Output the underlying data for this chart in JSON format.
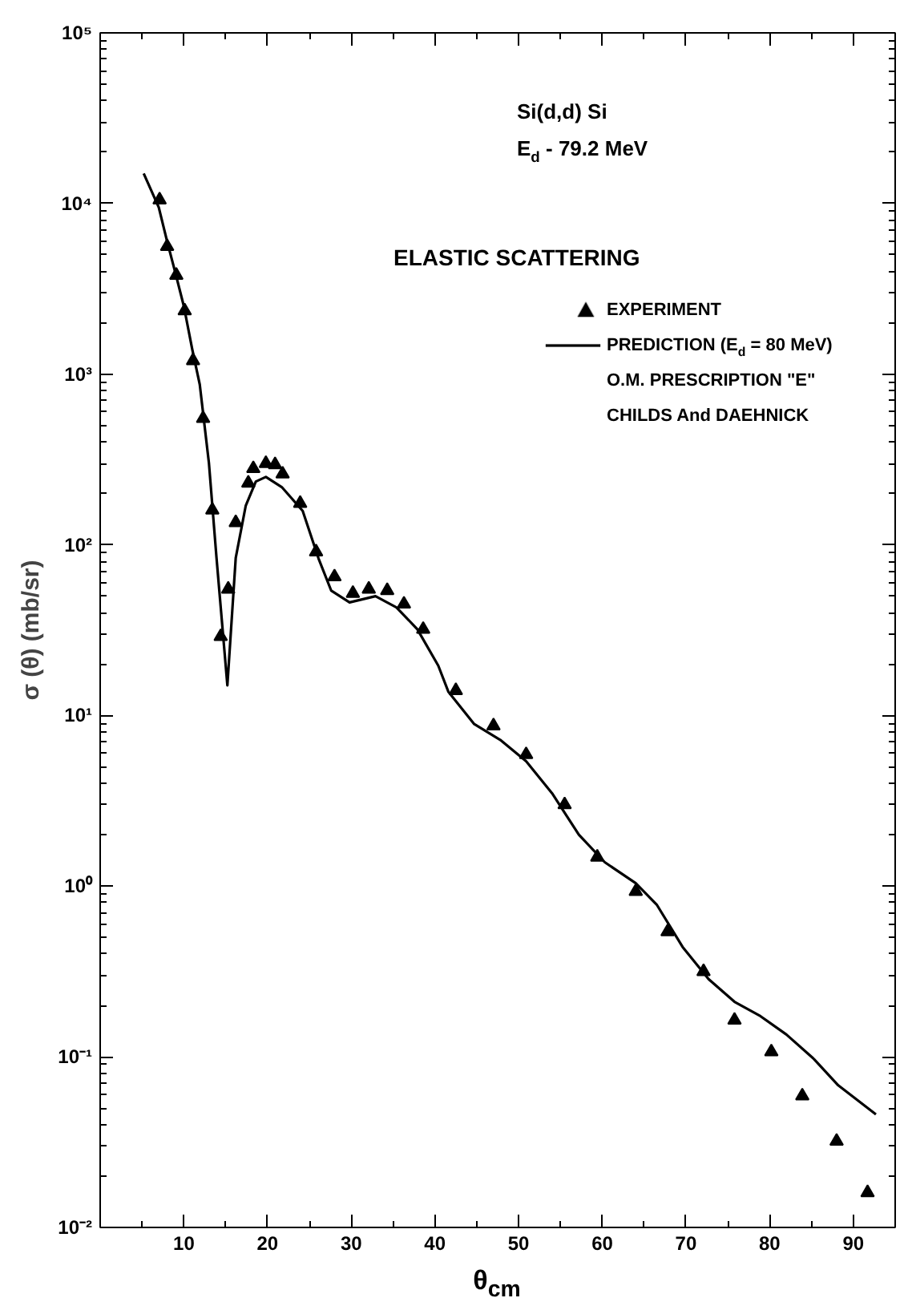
{
  "chart_data": {
    "type": "scatter",
    "xlabel": "θ$_{cm}$",
    "ylabel": "σ (θ) (mb/sr)",
    "annotations": [
      "Si(d,d) Si",
      "E$_{d}$ - 79.2 MeV",
      "ELASTIC SCATTERING"
    ],
    "log": "y",
    "grid": false,
    "legend": "top right",
    "xlim": [
      0,
      95
    ],
    "ylim": [
      0.01,
      100000
    ],
    "xticks": [
      10,
      20,
      30,
      40,
      50,
      60,
      70,
      80,
      90
    ],
    "yticks": [
      {
        "value": 0.01,
        "label": "10⁻²"
      },
      {
        "value": 0.1,
        "label": "10⁻¹"
      },
      {
        "value": 1,
        "label": "10⁰"
      },
      {
        "value": 10,
        "label": "10¹"
      },
      {
        "value": 100,
        "label": "10²"
      },
      {
        "value": 1000,
        "label": "10³"
      },
      {
        "value": 10000,
        "label": "10⁴"
      },
      {
        "value": 100000,
        "label": "10⁵"
      }
    ],
    "series": [
      {
        "name": "EXPERIMENT",
        "marker": "triangle",
        "color": "#000000",
        "x": [
          7.1,
          8.0,
          9.1,
          10.1,
          11.1,
          12.3,
          13.4,
          14.4,
          15.3,
          16.2,
          17.7,
          18.3,
          19.8,
          20.9,
          21.8,
          23.9,
          25.8,
          28.0,
          30.2,
          32.1,
          34.3,
          36.3,
          38.6,
          42.5,
          47.0,
          50.9,
          55.5,
          59.4,
          64.0,
          67.8,
          72.1,
          75.8,
          80.2,
          83.9,
          88.0,
          91.7
        ],
        "values": [
          10500,
          5600,
          3800,
          2350,
          1200,
          550,
          160,
          29,
          55,
          135,
          230,
          280,
          300,
          295,
          260,
          175,
          91,
          65,
          52,
          55,
          54,
          45,
          32,
          14,
          8.7,
          5.9,
          3.0,
          1.48,
          0.93,
          0.54,
          0.316,
          0.164,
          0.107,
          0.059,
          0.032,
          0.016
        ]
      },
      {
        "name": "PREDICTION (E$_{d}$ = 80 MeV)\nO.M. PRESCRIPTION \"E\"\nCHILDS And DAEHNICK",
        "type": "line",
        "line_style": "solid",
        "color": "#000000",
        "x": [
          5.2,
          7.0,
          8.0,
          9.0,
          10.0,
          11.0,
          11.9,
          13.0,
          13.9,
          15.2,
          16.2,
          17.4,
          18.6,
          19.8,
          21.7,
          24.2,
          26.1,
          27.6,
          29.8,
          32.9,
          35.4,
          37.9,
          40.4,
          41.6,
          44.7,
          47.8,
          50.9,
          54.0,
          57.2,
          60.3,
          64.0,
          66.5,
          69.6,
          72.7,
          75.8,
          78.9,
          82.0,
          85.2,
          88.2,
          92.7
        ],
        "values": [
          15000,
          9500,
          6000,
          3900,
          2500,
          1400,
          870,
          300,
          84,
          15,
          84,
          170,
          235,
          250,
          218,
          158,
          83,
          54,
          46,
          50,
          43,
          32,
          19.6,
          13.8,
          8.9,
          7.2,
          5.4,
          3.5,
          2.0,
          1.38,
          1.04,
          0.78,
          0.44,
          0.285,
          0.21,
          0.173,
          0.135,
          0.098,
          0.068,
          0.046
        ]
      }
    ]
  }
}
